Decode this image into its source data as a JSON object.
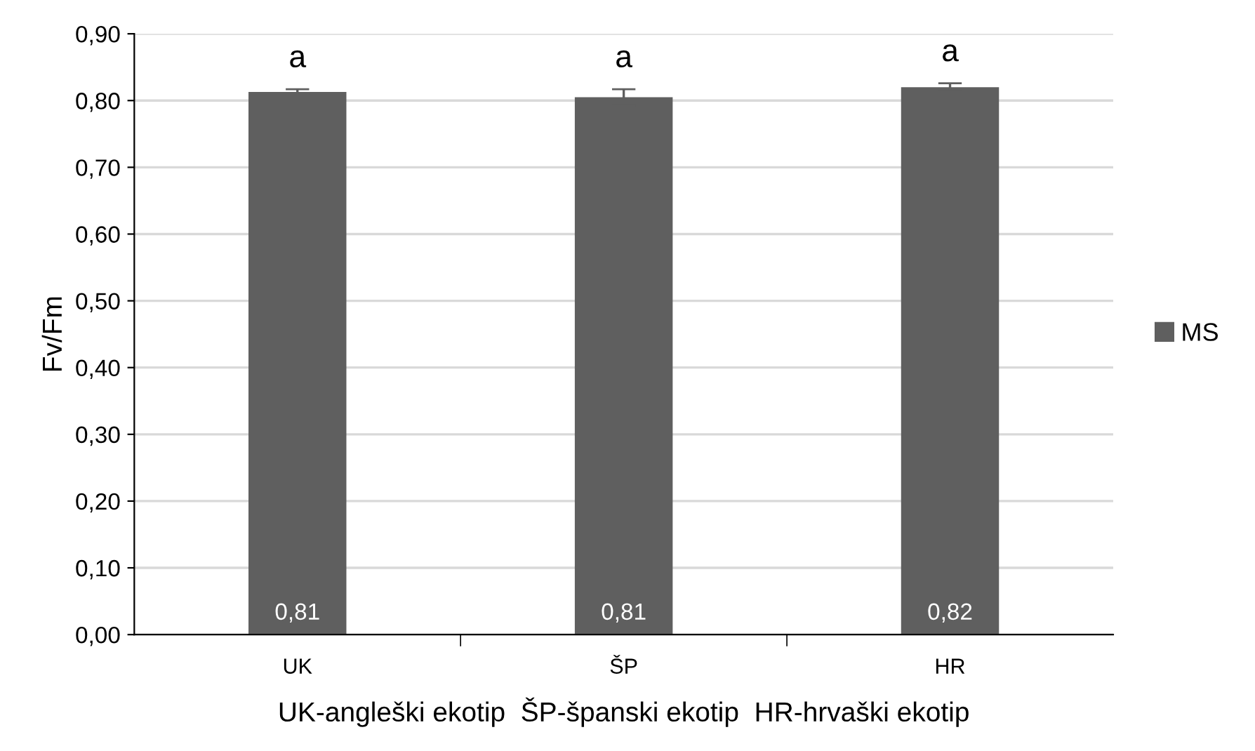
{
  "chart_data": {
    "type": "bar",
    "ylabel": "Fv/Fm",
    "xlabel": "UK-angleški ekotip  ŠP-španski ekotip  HR-hrvaški ekotip",
    "categories": [
      "UK",
      "ŠP",
      "HR"
    ],
    "series": [
      {
        "name": "MS",
        "color": "#5f5f5f",
        "values": [
          0.813,
          0.805,
          0.82
        ],
        "errors": [
          0.004,
          0.012,
          0.006
        ],
        "value_labels": [
          "0,81",
          "0,81",
          "0,82"
        ]
      }
    ],
    "ylim": [
      0,
      0.9
    ],
    "yticks": [
      {
        "value": 0,
        "label": "0,00"
      },
      {
        "value": 0.1,
        "label": "0,10"
      },
      {
        "value": 0.2,
        "label": "0,20"
      },
      {
        "value": 0.3,
        "label": "0,30"
      },
      {
        "value": 0.4,
        "label": "0,40"
      },
      {
        "value": 0.5,
        "label": "0,50"
      },
      {
        "value": 0.6,
        "label": "0,60"
      },
      {
        "value": 0.7,
        "label": "0,70"
      },
      {
        "value": 0.8,
        "label": "0,80"
      },
      {
        "value": 0.9,
        "label": "0,90"
      }
    ],
    "annotations": [
      "a",
      "a",
      "a"
    ],
    "grid": "y",
    "legend": "right"
  }
}
